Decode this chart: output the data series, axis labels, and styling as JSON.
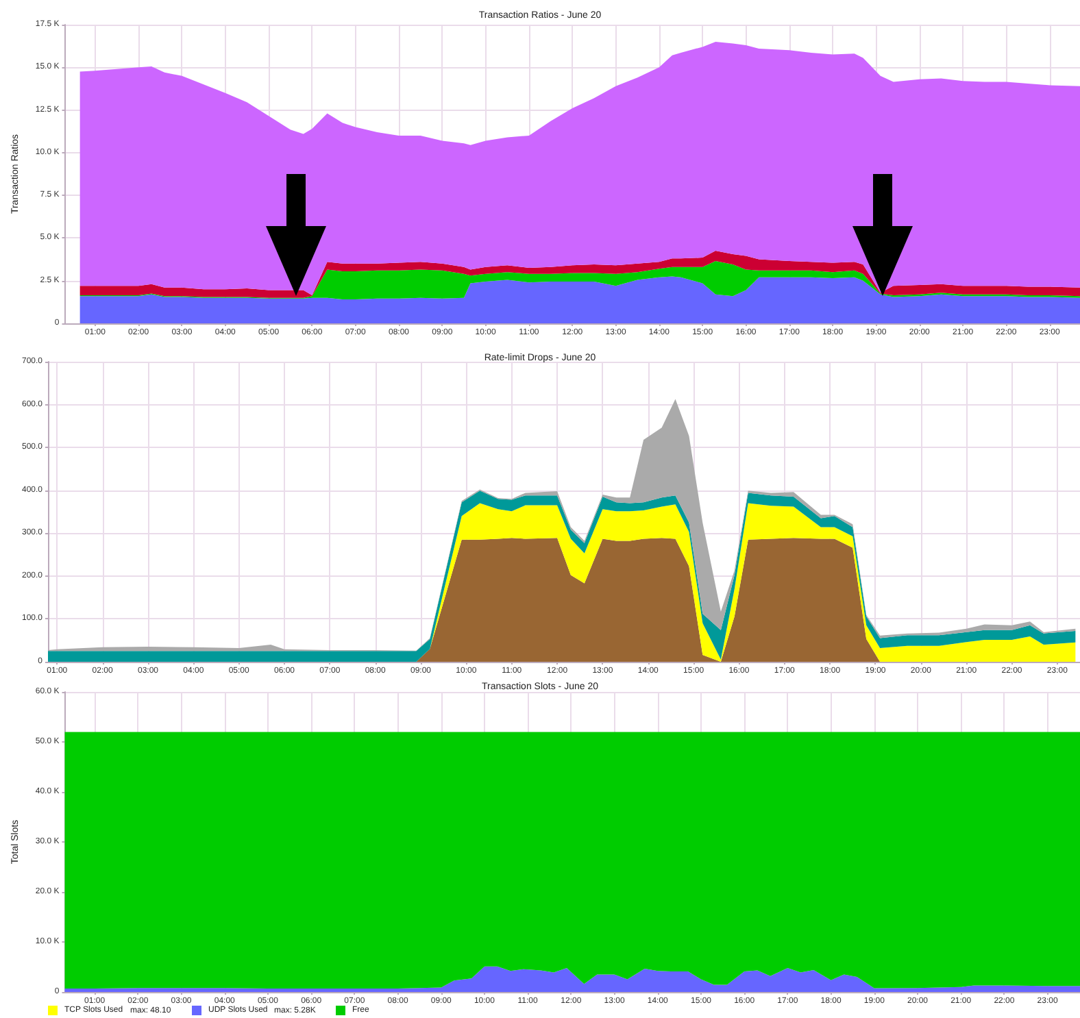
{
  "chart_data": [
    {
      "type": "area",
      "stacked": true,
      "title": "Transaction Ratios - June 20",
      "ylabel": "Transaction Ratios",
      "grid": true,
      "x": [
        0.65,
        1,
        1.5,
        2,
        2.3,
        2.6,
        3,
        3.5,
        4,
        4.5,
        5,
        5.5,
        5.8,
        6,
        6.35,
        6.7,
        7,
        7.5,
        8,
        8.5,
        9,
        9.5,
        9.65,
        10,
        10.5,
        11,
        11.5,
        12,
        12.5,
        13,
        13.5,
        14,
        14.3,
        14.5,
        15,
        15.3,
        15.7,
        16,
        16.3,
        17,
        17.5,
        18,
        18.5,
        18.7,
        19.1,
        19.4,
        20,
        20.5,
        21,
        21.5,
        22,
        22.5,
        23,
        23.7
      ],
      "series": [
        {
          "color": "#6666ff",
          "values": [
            1600,
            1600,
            1600,
            1600,
            1700,
            1550,
            1550,
            1500,
            1500,
            1500,
            1450,
            1450,
            1450,
            1500,
            1500,
            1400,
            1400,
            1450,
            1450,
            1500,
            1450,
            1500,
            2350,
            2450,
            2550,
            2400,
            2450,
            2450,
            2450,
            2200,
            2550,
            2700,
            2750,
            2700,
            2350,
            1700,
            1600,
            1950,
            2700,
            2700,
            2700,
            2650,
            2700,
            2500,
            1700,
            1550,
            1600,
            1700,
            1600,
            1600,
            1600,
            1550,
            1550,
            1500
          ]
        },
        {
          "color": "#00cc00",
          "values": [
            50,
            50,
            50,
            50,
            50,
            50,
            50,
            50,
            50,
            50,
            50,
            50,
            50,
            100,
            1650,
            1650,
            1650,
            1650,
            1650,
            1650,
            1650,
            1400,
            450,
            450,
            450,
            500,
            450,
            500,
            500,
            700,
            450,
            500,
            550,
            600,
            950,
            1950,
            1850,
            1200,
            400,
            400,
            400,
            350,
            400,
            400,
            50,
            100,
            100,
            100,
            100,
            100,
            100,
            100,
            100,
            100
          ]
        },
        {
          "color": "#cc0033",
          "values": [
            550,
            550,
            550,
            550,
            550,
            500,
            500,
            450,
            450,
            500,
            450,
            450,
            450,
            50,
            450,
            450,
            450,
            400,
            450,
            450,
            400,
            400,
            350,
            400,
            400,
            350,
            400,
            450,
            500,
            500,
            500,
            400,
            500,
            500,
            550,
            600,
            600,
            800,
            650,
            550,
            500,
            550,
            500,
            550,
            50,
            550,
            550,
            500,
            500,
            500,
            500,
            500,
            500,
            500
          ]
        },
        {
          "color": "#cc66ff",
          "values": [
            12550,
            12600,
            12700,
            12800,
            12750,
            12600,
            12400,
            12000,
            11500,
            10900,
            10200,
            9400,
            9150,
            9750,
            8700,
            8250,
            8000,
            7700,
            7450,
            7400,
            7200,
            7250,
            7300,
            7400,
            7500,
            7750,
            8550,
            9200,
            9750,
            10500,
            10900,
            11400,
            11900,
            12050,
            12350,
            12250,
            12350,
            12350,
            12350,
            12350,
            12250,
            12200,
            12200,
            12100,
            12700,
            11950,
            12050,
            12050,
            12000,
            11950,
            11950,
            11900,
            11800,
            11800
          ]
        }
      ],
      "xlim": [
        0.3,
        23.7
      ],
      "ylim": [
        0,
        17500
      ],
      "xticks": [
        {
          "value": 1,
          "label": "01:00"
        },
        {
          "value": 2,
          "label": "02:00"
        },
        {
          "value": 3,
          "label": "03:00"
        },
        {
          "value": 4,
          "label": "04:00"
        },
        {
          "value": 5,
          "label": "05:00"
        },
        {
          "value": 6,
          "label": "06:00"
        },
        {
          "value": 7,
          "label": "07:00"
        },
        {
          "value": 8,
          "label": "08:00"
        },
        {
          "value": 9,
          "label": "09:00"
        },
        {
          "value": 10,
          "label": "10:00"
        },
        {
          "value": 11,
          "label": "11:00"
        },
        {
          "value": 12,
          "label": "12:00"
        },
        {
          "value": 13,
          "label": "13:00"
        },
        {
          "value": 14,
          "label": "14:00"
        },
        {
          "value": 15,
          "label": "15:00"
        },
        {
          "value": 16,
          "label": "16:00"
        },
        {
          "value": 17,
          "label": "17:00"
        },
        {
          "value": 18,
          "label": "18:00"
        },
        {
          "value": 19,
          "label": "19:00"
        },
        {
          "value": 20,
          "label": "20:00"
        },
        {
          "value": 21,
          "label": "21:00"
        },
        {
          "value": 22,
          "label": "22:00"
        },
        {
          "value": 23,
          "label": "23:00"
        }
      ],
      "yticks": [
        {
          "value": 0,
          "label": "0"
        },
        {
          "value": 2500,
          "label": "2.5 K"
        },
        {
          "value": 5000,
          "label": "5.0 K"
        },
        {
          "value": 7500,
          "label": "7.5 K"
        },
        {
          "value": 10000,
          "label": "10.0 K"
        },
        {
          "value": 12500,
          "label": "12.5 K"
        },
        {
          "value": 15000,
          "label": "15.0 K"
        },
        {
          "value": 17500,
          "label": "17.5 K"
        }
      ]
    },
    {
      "type": "area",
      "stacked": true,
      "title": "Rate-limit Drops - June 20",
      "grid": true,
      "x": [
        0.8,
        1,
        2,
        3,
        4,
        5,
        5.7,
        6,
        7,
        8,
        8.9,
        9.2,
        9.9,
        10.3,
        10.7,
        11,
        11.3,
        12,
        12.3,
        12.6,
        13,
        13.3,
        13.6,
        13.9,
        14.3,
        14.6,
        14.9,
        15.2,
        15.6,
        15.9,
        16.2,
        16.7,
        17.2,
        17.8,
        18.1,
        18.5,
        18.8,
        19.1,
        19.7,
        20.4,
        21,
        21.4,
        22,
        22.4,
        22.7,
        23.4
      ],
      "series": [
        {
          "color": "#996633",
          "values": [
            0,
            0,
            0,
            0,
            0,
            0,
            0,
            0,
            0,
            0,
            0,
            30,
            285,
            285,
            287,
            289,
            287,
            289,
            202,
            183,
            287,
            282,
            282,
            287,
            289,
            287,
            223,
            16,
            0,
            106,
            285,
            287,
            289,
            287,
            287,
            266,
            53,
            0,
            0,
            0,
            0,
            0,
            0,
            0,
            0,
            0
          ]
        },
        {
          "color": "#ffff00",
          "values": [
            0,
            0,
            0,
            0,
            0,
            0,
            0,
            0,
            0,
            0,
            0,
            0,
            55,
            85,
            69,
            62,
            78,
            76,
            85,
            70,
            69,
            69,
            69,
            66,
            73,
            80,
            80,
            74,
            5,
            64,
            85,
            77,
            73,
            27,
            27,
            27,
            32,
            32,
            37,
            37,
            46,
            51,
            51,
            59,
            40,
            45
          ]
        },
        {
          "color": "#009999",
          "values": [
            25,
            25,
            25,
            25,
            25,
            25,
            25,
            25,
            25,
            25,
            25,
            23,
            32,
            29,
            24,
            27,
            23,
            23,
            21,
            24,
            29,
            21,
            19,
            19,
            21,
            21,
            22,
            22,
            69,
            32,
            24,
            24,
            23,
            21,
            26,
            21,
            21,
            23,
            25,
            25,
            23,
            23,
            23,
            26,
            26,
            27
          ]
        },
        {
          "color": "#aaaaaa",
          "values": [
            2,
            4,
            9,
            10,
            9,
            7,
            15,
            4,
            2,
            2,
            1,
            2,
            3,
            3,
            2,
            2,
            6,
            10,
            6,
            5,
            5,
            11,
            13,
            146,
            163,
            225,
            202,
            212,
            43,
            11,
            5,
            6,
            11,
            8,
            3,
            7,
            3,
            6,
            4,
            6,
            8,
            13,
            11,
            9,
            3,
            5
          ]
        }
      ],
      "xlim": [
        0.8,
        23.5
      ],
      "ylim": [
        0,
        700
      ],
      "xticks": [
        {
          "value": 1,
          "label": "01:00"
        },
        {
          "value": 2,
          "label": "02:00"
        },
        {
          "value": 3,
          "label": "03:00"
        },
        {
          "value": 4,
          "label": "04:00"
        },
        {
          "value": 5,
          "label": "05:00"
        },
        {
          "value": 6,
          "label": "06:00"
        },
        {
          "value": 7,
          "label": "07:00"
        },
        {
          "value": 8,
          "label": "08:00"
        },
        {
          "value": 9,
          "label": "09:00"
        },
        {
          "value": 10,
          "label": "10:00"
        },
        {
          "value": 11,
          "label": "11:00"
        },
        {
          "value": 12,
          "label": "12:00"
        },
        {
          "value": 13,
          "label": "13:00"
        },
        {
          "value": 14,
          "label": "14:00"
        },
        {
          "value": 15,
          "label": "15:00"
        },
        {
          "value": 16,
          "label": "16:00"
        },
        {
          "value": 17,
          "label": "17:00"
        },
        {
          "value": 18,
          "label": "18:00"
        },
        {
          "value": 19,
          "label": "19:00"
        },
        {
          "value": 20,
          "label": "20:00"
        },
        {
          "value": 21,
          "label": "21:00"
        },
        {
          "value": 22,
          "label": "22:00"
        },
        {
          "value": 23,
          "label": "23:00"
        }
      ],
      "yticks": [
        {
          "value": 0,
          "label": "0"
        },
        {
          "value": 100,
          "label": "100.0"
        },
        {
          "value": 200,
          "label": "200.0"
        },
        {
          "value": 300,
          "label": "300.0"
        },
        {
          "value": 400,
          "label": "400.0"
        },
        {
          "value": 500,
          "label": "500.0"
        },
        {
          "value": 600,
          "label": "600.0"
        },
        {
          "value": 700,
          "label": "700.0"
        }
      ]
    },
    {
      "type": "area",
      "stacked": true,
      "title": "Transaction Slots - June 20",
      "ylabel": "Total Slots",
      "grid": true,
      "legend": "bottom left",
      "annotations": [
        "max: 48.10",
        "max: 5.28K"
      ],
      "x": [
        0.31,
        1,
        2,
        3,
        4,
        5,
        6,
        7,
        8,
        9,
        9.3,
        9.7,
        10,
        10.3,
        10.6,
        10.9,
        11.3,
        11.6,
        11.9,
        12.3,
        12.6,
        13,
        13.3,
        13.7,
        14,
        14.3,
        14.7,
        15,
        15.3,
        15.6,
        16,
        16.3,
        16.6,
        17,
        17.3,
        17.6,
        18,
        18.3,
        18.6,
        19,
        20,
        21,
        21.3,
        22,
        23,
        23.75
      ],
      "series": [
        {
          "name": "TCP Slots Used",
          "color": "#ffff00",
          "values": [
            null,
            null,
            null,
            null,
            null,
            null,
            null,
            null,
            null,
            null,
            null,
            null,
            null,
            null,
            null,
            null,
            null,
            null,
            null,
            null,
            null,
            null,
            null,
            null,
            null,
            null,
            null,
            null,
            null,
            null,
            null,
            null,
            null,
            null,
            null,
            null,
            null,
            null,
            null,
            null,
            null,
            null,
            null,
            null,
            null,
            null
          ]
        },
        {
          "name": "UDP Slots Used",
          "color": "#6666ff",
          "values": [
            700,
            700,
            800,
            800,
            800,
            700,
            700,
            700,
            700,
            900,
            2300,
            2700,
            5100,
            5100,
            4200,
            4550,
            4300,
            3900,
            4800,
            1600,
            3500,
            3500,
            2550,
            4650,
            4200,
            4100,
            4100,
            2550,
            1450,
            1450,
            4100,
            4300,
            3200,
            4800,
            3900,
            4400,
            2350,
            3500,
            3000,
            750,
            800,
            1000,
            1300,
            1300,
            1200,
            1200
          ]
        },
        {
          "name": "Free",
          "color": "#00cc00",
          "values": [
            51300,
            51300,
            51200,
            51200,
            51200,
            51300,
            51300,
            51300,
            51300,
            51100,
            49700,
            49300,
            46900,
            46900,
            47800,
            47450,
            47700,
            48100,
            47200,
            50400,
            48500,
            48500,
            49450,
            47350,
            47800,
            47900,
            47900,
            49450,
            50550,
            50550,
            47900,
            47700,
            48800,
            47200,
            48100,
            47600,
            49650,
            48500,
            49000,
            51250,
            51200,
            51000,
            50700,
            50700,
            50800,
            50800
          ]
        }
      ],
      "xlim": [
        0.31,
        23.75
      ],
      "ylim": [
        0,
        60000
      ],
      "xticks": [
        {
          "value": 1,
          "label": "01:00"
        },
        {
          "value": 2,
          "label": "02:00"
        },
        {
          "value": 3,
          "label": "03:00"
        },
        {
          "value": 4,
          "label": "04:00"
        },
        {
          "value": 5,
          "label": "05:00"
        },
        {
          "value": 6,
          "label": "06:00"
        },
        {
          "value": 7,
          "label": "07:00"
        },
        {
          "value": 8,
          "label": "08:00"
        },
        {
          "value": 9,
          "label": "09:00"
        },
        {
          "value": 10,
          "label": "10:00"
        },
        {
          "value": 11,
          "label": "11:00"
        },
        {
          "value": 12,
          "label": "12:00"
        },
        {
          "value": 13,
          "label": "13:00"
        },
        {
          "value": 14,
          "label": "14:00"
        },
        {
          "value": 15,
          "label": "15:00"
        },
        {
          "value": 16,
          "label": "16:00"
        },
        {
          "value": 17,
          "label": "17:00"
        },
        {
          "value": 18,
          "label": "18:00"
        },
        {
          "value": 19,
          "label": "19:00"
        },
        {
          "value": 20,
          "label": "20:00"
        },
        {
          "value": 21,
          "label": "21:00"
        },
        {
          "value": 22,
          "label": "22:00"
        },
        {
          "value": 23,
          "label": "23:00"
        }
      ],
      "yticks": [
        {
          "value": 0,
          "label": "0"
        },
        {
          "value": 10000,
          "label": "10.0 K"
        },
        {
          "value": 20000,
          "label": "20.0 K"
        },
        {
          "value": 30000,
          "label": "30.0 K"
        },
        {
          "value": 40000,
          "label": "40.0 K"
        },
        {
          "value": 50000,
          "label": "50.0 K"
        },
        {
          "value": 60000,
          "label": "60.0 K"
        }
      ]
    }
  ]
}
